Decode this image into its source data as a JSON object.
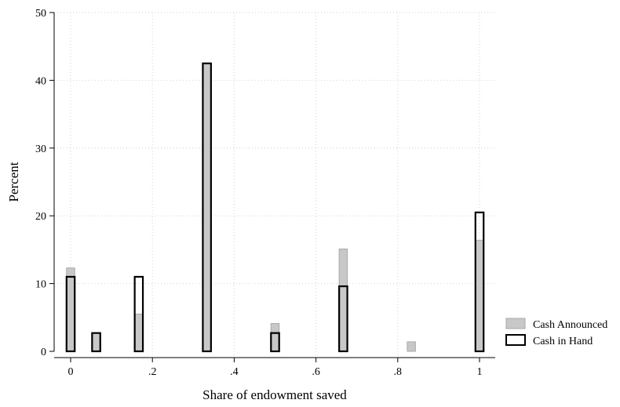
{
  "chart_data": {
    "type": "bar",
    "title": "",
    "xlabel": "Share of endowment saved",
    "ylabel": "Percent",
    "xlim": [
      0,
      1
    ],
    "ylim": [
      0,
      50
    ],
    "x_ticks": [
      {
        "value": 0,
        "label": "0"
      },
      {
        "value": 0.2,
        "label": ".2"
      },
      {
        "value": 0.4,
        "label": ".4"
      },
      {
        "value": 0.6,
        "label": ".6"
      },
      {
        "value": 0.8,
        "label": ".8"
      },
      {
        "value": 1,
        "label": "1"
      }
    ],
    "y_ticks": [
      {
        "value": 0,
        "label": "0"
      },
      {
        "value": 10,
        "label": "10"
      },
      {
        "value": 20,
        "label": "20"
      },
      {
        "value": 30,
        "label": "30"
      },
      {
        "value": 40,
        "label": "40"
      },
      {
        "value": 50,
        "label": "50"
      }
    ],
    "bar_width": 0.02,
    "grid": true,
    "legend_position": "bottom-right",
    "series": [
      {
        "name": "Cash Announced",
        "style": "filled",
        "fill": "#c8c8c8",
        "stroke": "#a8a8a8",
        "points": [
          {
            "x": 0,
            "y": 12.3
          },
          {
            "x": 0.0625,
            "y": 2.7
          },
          {
            "x": 0.1667,
            "y": 5.5
          },
          {
            "x": 0.3333,
            "y": 42.5
          },
          {
            "x": 0.5,
            "y": 4.1
          },
          {
            "x": 0.6667,
            "y": 15.1
          },
          {
            "x": 0.8333,
            "y": 1.4
          },
          {
            "x": 1,
            "y": 16.4
          }
        ]
      },
      {
        "name": "Cash in Hand",
        "style": "outline",
        "fill": "none",
        "stroke": "#000000",
        "points": [
          {
            "x": 0,
            "y": 11.0
          },
          {
            "x": 0.0625,
            "y": 2.7
          },
          {
            "x": 0.1667,
            "y": 11.0
          },
          {
            "x": 0.3333,
            "y": 42.5
          },
          {
            "x": 0.5,
            "y": 2.7
          },
          {
            "x": 0.6667,
            "y": 9.6
          },
          {
            "x": 1,
            "y": 20.5
          }
        ]
      }
    ]
  }
}
